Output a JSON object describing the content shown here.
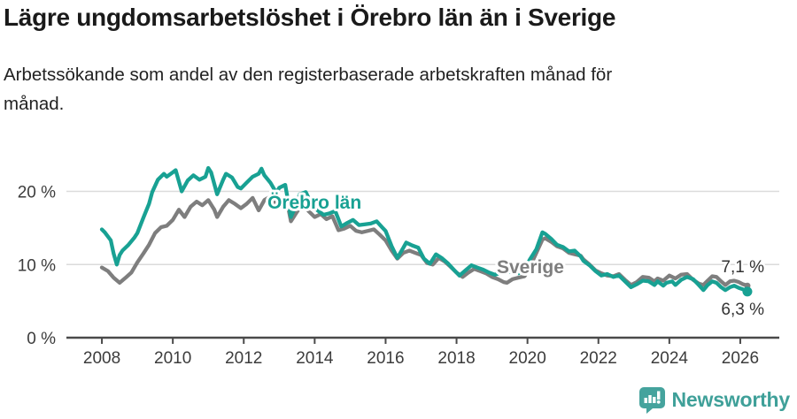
{
  "header": {
    "title": "Lägre ungdomsarbetslöshet i Örebro län än i Sverige",
    "subtitle": "Arbetssökande som andel av den registerbaserade arbetskraften månad för månad."
  },
  "footer": {
    "brand": "Newsworthy"
  },
  "colors": {
    "orebro": "#18A193",
    "sverige": "#7E7E7E",
    "axis": "#4A4A4A",
    "tick_text": "#3C3C3C",
    "grid": "#DBDBDB",
    "brand": "#45A39D"
  },
  "chart_data": {
    "type": "line",
    "title": "Lägre ungdomsarbetslöshet i Örebro län än i Sverige",
    "subtitle": "Arbetssökande som andel av den registerbaserade arbetskraften månad för månad.",
    "y_unit": "% av registerbaserad arbetskraft",
    "xlim": [
      2007,
      2027.1
    ],
    "ylim": [
      0,
      24
    ],
    "grid": "horizontal",
    "legend_position": "inline-labels",
    "y_ticks": [
      {
        "value": 0,
        "label": "0 %"
      },
      {
        "value": 10,
        "label": "10 %"
      },
      {
        "value": 20,
        "label": "20 %"
      }
    ],
    "x_ticks": [
      {
        "value": 2008,
        "label": "2008"
      },
      {
        "value": 2010,
        "label": "2010"
      },
      {
        "value": 2012,
        "label": "2012"
      },
      {
        "value": 2014,
        "label": "2014"
      },
      {
        "value": 2016,
        "label": "2016"
      },
      {
        "value": 2018,
        "label": "2018"
      },
      {
        "value": 2020,
        "label": "2020"
      },
      {
        "value": 2022,
        "label": "2022"
      },
      {
        "value": 2024,
        "label": "2024"
      },
      {
        "value": 2026,
        "label": "2026"
      }
    ],
    "annotations": {
      "orebro_label": "Örebro län",
      "sverige_label": "Sverige",
      "sverige_end_label": "7,1 %",
      "orebro_end_label": "6,3 %"
    },
    "series": [
      {
        "name": "Sverige",
        "color": "#7E7E7E",
        "end_label": "7,1 %",
        "end_value": 7.1,
        "points": [
          [
            2008.0,
            9.6
          ],
          [
            2008.17,
            9.1
          ],
          [
            2008.33,
            8.2
          ],
          [
            2008.5,
            7.5
          ],
          [
            2008.67,
            8.2
          ],
          [
            2008.83,
            8.9
          ],
          [
            2009.0,
            10.3
          ],
          [
            2009.17,
            11.5
          ],
          [
            2009.33,
            12.7
          ],
          [
            2009.5,
            14.3
          ],
          [
            2009.67,
            15.1
          ],
          [
            2009.83,
            15.3
          ],
          [
            2010.0,
            16.1
          ],
          [
            2010.17,
            17.5
          ],
          [
            2010.33,
            16.5
          ],
          [
            2010.5,
            17.9
          ],
          [
            2010.67,
            18.6
          ],
          [
            2010.83,
            18.1
          ],
          [
            2011.0,
            18.8
          ],
          [
            2011.17,
            17.5
          ],
          [
            2011.25,
            16.5
          ],
          [
            2011.42,
            17.9
          ],
          [
            2011.58,
            18.8
          ],
          [
            2011.75,
            18.3
          ],
          [
            2011.92,
            17.7
          ],
          [
            2012.08,
            18.3
          ],
          [
            2012.25,
            19.1
          ],
          [
            2012.42,
            17.4
          ],
          [
            2012.58,
            18.8
          ],
          [
            2012.75,
            19.3
          ],
          [
            2012.92,
            18.1
          ],
          [
            2013.08,
            18.6
          ],
          [
            2013.25,
            17.9
          ],
          [
            2013.33,
            15.9
          ],
          [
            2013.5,
            17.2
          ],
          [
            2013.67,
            18.3
          ],
          [
            2013.83,
            17.3
          ],
          [
            2014.0,
            16.5
          ],
          [
            2014.17,
            16.9
          ],
          [
            2014.33,
            16.2
          ],
          [
            2014.5,
            16.6
          ],
          [
            2014.67,
            14.7
          ],
          [
            2014.83,
            14.9
          ],
          [
            2015.0,
            15.3
          ],
          [
            2015.17,
            14.6
          ],
          [
            2015.33,
            14.4
          ],
          [
            2015.5,
            14.6
          ],
          [
            2015.67,
            14.8
          ],
          [
            2015.83,
            14.1
          ],
          [
            2016.0,
            13.3
          ],
          [
            2016.17,
            11.9
          ],
          [
            2016.33,
            10.8
          ],
          [
            2016.5,
            11.6
          ],
          [
            2016.67,
            11.9
          ],
          [
            2016.83,
            11.6
          ],
          [
            2017.0,
            11.3
          ],
          [
            2017.17,
            10.2
          ],
          [
            2017.33,
            10.0
          ],
          [
            2017.5,
            10.9
          ],
          [
            2017.67,
            10.4
          ],
          [
            2017.83,
            9.7
          ],
          [
            2018.0,
            8.9
          ],
          [
            2018.17,
            8.3
          ],
          [
            2018.33,
            8.9
          ],
          [
            2018.5,
            9.4
          ],
          [
            2018.67,
            9.1
          ],
          [
            2018.83,
            8.8
          ],
          [
            2019.0,
            8.3
          ],
          [
            2019.17,
            8.0
          ],
          [
            2019.33,
            7.6
          ],
          [
            2019.42,
            7.5
          ],
          [
            2019.58,
            8.0
          ],
          [
            2019.75,
            8.2
          ],
          [
            2019.92,
            8.4
          ],
          [
            2020.08,
            9.8
          ],
          [
            2020.25,
            11.6
          ],
          [
            2020.42,
            13.4
          ],
          [
            2020.5,
            13.6
          ],
          [
            2020.67,
            13.1
          ],
          [
            2020.83,
            12.5
          ],
          [
            2021.0,
            12.2
          ],
          [
            2021.17,
            11.6
          ],
          [
            2021.33,
            11.4
          ],
          [
            2021.5,
            11.2
          ],
          [
            2021.58,
            10.7
          ],
          [
            2021.75,
            10.0
          ],
          [
            2021.92,
            9.2
          ],
          [
            2022.08,
            8.8
          ],
          [
            2022.25,
            8.5
          ],
          [
            2022.42,
            8.4
          ],
          [
            2022.58,
            8.7
          ],
          [
            2022.75,
            7.9
          ],
          [
            2022.92,
            7.2
          ],
          [
            2023.08,
            7.6
          ],
          [
            2023.25,
            8.3
          ],
          [
            2023.42,
            8.2
          ],
          [
            2023.58,
            7.7
          ],
          [
            2023.67,
            8.1
          ],
          [
            2023.83,
            7.8
          ],
          [
            2024.0,
            8.5
          ],
          [
            2024.17,
            8.1
          ],
          [
            2024.33,
            8.6
          ],
          [
            2024.5,
            8.7
          ],
          [
            2024.67,
            7.9
          ],
          [
            2024.83,
            7.4
          ],
          [
            2024.96,
            7.2
          ],
          [
            2025.08,
            7.8
          ],
          [
            2025.21,
            8.4
          ],
          [
            2025.33,
            8.3
          ],
          [
            2025.46,
            7.7
          ],
          [
            2025.58,
            7.2
          ],
          [
            2025.71,
            7.7
          ],
          [
            2025.83,
            7.8
          ],
          [
            2025.96,
            7.6
          ],
          [
            2026.08,
            7.3
          ],
          [
            2026.2,
            7.1
          ]
        ]
      },
      {
        "name": "Örebro län",
        "color": "#18A193",
        "end_label": "6,3 %",
        "end_value": 6.3,
        "end_dot": true,
        "points": [
          [
            2008.0,
            14.8
          ],
          [
            2008.08,
            14.4
          ],
          [
            2008.25,
            13.3
          ],
          [
            2008.33,
            11.5
          ],
          [
            2008.42,
            10.0
          ],
          [
            2008.5,
            11.3
          ],
          [
            2008.58,
            11.9
          ],
          [
            2008.75,
            12.7
          ],
          [
            2008.92,
            13.7
          ],
          [
            2009.0,
            14.3
          ],
          [
            2009.17,
            16.4
          ],
          [
            2009.33,
            18.3
          ],
          [
            2009.42,
            19.9
          ],
          [
            2009.58,
            21.6
          ],
          [
            2009.75,
            22.4
          ],
          [
            2009.83,
            22.0
          ],
          [
            2010.0,
            22.6
          ],
          [
            2010.08,
            22.9
          ],
          [
            2010.25,
            20.0
          ],
          [
            2010.42,
            21.5
          ],
          [
            2010.58,
            22.2
          ],
          [
            2010.75,
            21.6
          ],
          [
            2010.92,
            22.0
          ],
          [
            2011.0,
            23.2
          ],
          [
            2011.08,
            22.6
          ],
          [
            2011.25,
            19.6
          ],
          [
            2011.42,
            21.6
          ],
          [
            2011.5,
            22.4
          ],
          [
            2011.67,
            21.9
          ],
          [
            2011.83,
            20.6
          ],
          [
            2011.92,
            20.4
          ],
          [
            2012.08,
            21.2
          ],
          [
            2012.25,
            22.0
          ],
          [
            2012.42,
            22.4
          ],
          [
            2012.5,
            23.1
          ],
          [
            2012.58,
            22.2
          ],
          [
            2012.75,
            21.2
          ],
          [
            2012.92,
            19.8
          ],
          [
            2013.0,
            20.5
          ],
          [
            2013.17,
            20.9
          ],
          [
            2013.33,
            16.5
          ],
          [
            2013.5,
            18.4
          ],
          [
            2013.58,
            19.6
          ],
          [
            2013.75,
            19.9
          ],
          [
            2013.92,
            18.2
          ],
          [
            2014.08,
            17.4
          ],
          [
            2014.25,
            16.8
          ],
          [
            2014.42,
            17.0
          ],
          [
            2014.58,
            17.3
          ],
          [
            2014.75,
            15.2
          ],
          [
            2014.92,
            15.7
          ],
          [
            2015.08,
            16.1
          ],
          [
            2015.25,
            15.4
          ],
          [
            2015.42,
            15.5
          ],
          [
            2015.58,
            15.6
          ],
          [
            2015.75,
            15.9
          ],
          [
            2015.92,
            15.0
          ],
          [
            2016.0,
            14.6
          ],
          [
            2016.17,
            12.5
          ],
          [
            2016.33,
            10.9
          ],
          [
            2016.5,
            12.3
          ],
          [
            2016.58,
            13.0
          ],
          [
            2016.75,
            12.6
          ],
          [
            2016.92,
            12.3
          ],
          [
            2017.08,
            10.8
          ],
          [
            2017.25,
            10.1
          ],
          [
            2017.42,
            11.4
          ],
          [
            2017.58,
            10.9
          ],
          [
            2017.75,
            10.2
          ],
          [
            2017.92,
            9.3
          ],
          [
            2018.08,
            8.5
          ],
          [
            2018.25,
            9.2
          ],
          [
            2018.42,
            9.9
          ],
          [
            2018.58,
            9.6
          ],
          [
            2018.75,
            9.3
          ],
          [
            2018.92,
            8.9
          ],
          [
            2019.08,
            8.6
          ],
          [
            2019.25,
            8.9
          ],
          [
            2019.42,
            9.1
          ],
          [
            2019.58,
            8.9
          ],
          [
            2019.75,
            8.8
          ],
          [
            2019.92,
            9.4
          ],
          [
            2020.08,
            10.8
          ],
          [
            2020.25,
            12.1
          ],
          [
            2020.42,
            14.4
          ],
          [
            2020.5,
            14.2
          ],
          [
            2020.67,
            13.5
          ],
          [
            2020.83,
            12.7
          ],
          [
            2021.0,
            12.4
          ],
          [
            2021.17,
            11.8
          ],
          [
            2021.33,
            11.9
          ],
          [
            2021.5,
            11.1
          ],
          [
            2021.58,
            10.5
          ],
          [
            2021.75,
            9.9
          ],
          [
            2021.92,
            9.1
          ],
          [
            2022.08,
            8.5
          ],
          [
            2022.25,
            8.7
          ],
          [
            2022.42,
            8.3
          ],
          [
            2022.58,
            8.5
          ],
          [
            2022.75,
            7.7
          ],
          [
            2022.92,
            6.9
          ],
          [
            2023.08,
            7.3
          ],
          [
            2023.25,
            7.8
          ],
          [
            2023.42,
            7.7
          ],
          [
            2023.58,
            7.2
          ],
          [
            2023.67,
            7.7
          ],
          [
            2023.83,
            7.1
          ],
          [
            2023.92,
            7.5
          ],
          [
            2024.08,
            7.7
          ],
          [
            2024.17,
            7.2
          ],
          [
            2024.33,
            7.9
          ],
          [
            2024.5,
            8.3
          ],
          [
            2024.67,
            8.0
          ],
          [
            2024.83,
            7.2
          ],
          [
            2024.96,
            6.5
          ],
          [
            2025.08,
            7.2
          ],
          [
            2025.21,
            7.7
          ],
          [
            2025.33,
            7.5
          ],
          [
            2025.46,
            6.9
          ],
          [
            2025.58,
            6.5
          ],
          [
            2025.71,
            6.9
          ],
          [
            2025.83,
            7.1
          ],
          [
            2025.96,
            6.8
          ],
          [
            2026.08,
            6.6
          ],
          [
            2026.2,
            6.3
          ]
        ]
      }
    ]
  }
}
